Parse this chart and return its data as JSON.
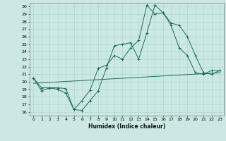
{
  "xlabel": "Humidex (Indice chaleur)",
  "bg_color": "#cce8e4",
  "line_color": "#1a6b5e",
  "grid_color": "#aad4cc",
  "xlim": [
    -0.5,
    23.5
  ],
  "ylim": [
    15.5,
    30.5
  ],
  "xticks": [
    0,
    1,
    2,
    3,
    4,
    5,
    6,
    7,
    8,
    9,
    10,
    11,
    12,
    13,
    14,
    15,
    16,
    17,
    18,
    19,
    20,
    21,
    22,
    23
  ],
  "yticks": [
    16,
    17,
    18,
    19,
    20,
    21,
    22,
    23,
    24,
    25,
    26,
    27,
    28,
    29,
    30
  ],
  "line1_x": [
    0,
    1,
    2,
    3,
    4,
    5,
    6,
    7,
    8,
    9,
    10,
    11,
    12,
    13,
    14,
    15,
    16,
    17,
    18,
    19,
    20,
    21,
    22,
    23
  ],
  "line1_y": [
    20.5,
    18.8,
    19.2,
    19.2,
    19.1,
    16.3,
    16.2,
    17.5,
    18.8,
    21.8,
    24.8,
    25.0,
    25.2,
    23.0,
    26.5,
    30.2,
    29.2,
    27.8,
    27.5,
    26.0,
    23.5,
    21.2,
    21.0,
    21.5
  ],
  "line2_x": [
    0,
    1,
    2,
    3,
    4,
    5,
    6,
    7,
    8,
    9,
    10,
    11,
    12,
    13,
    14,
    15,
    16,
    17,
    18,
    19,
    20,
    21,
    22,
    23
  ],
  "line2_y": [
    20.5,
    19.2,
    19.2,
    19.0,
    18.5,
    16.3,
    17.5,
    18.9,
    21.8,
    22.2,
    23.5,
    23.0,
    24.5,
    25.5,
    30.2,
    29.0,
    29.2,
    27.5,
    24.5,
    23.5,
    21.2,
    21.0,
    21.5,
    21.5
  ],
  "line3_x": [
    0,
    23
  ],
  "line3_y": [
    19.8,
    21.2
  ]
}
